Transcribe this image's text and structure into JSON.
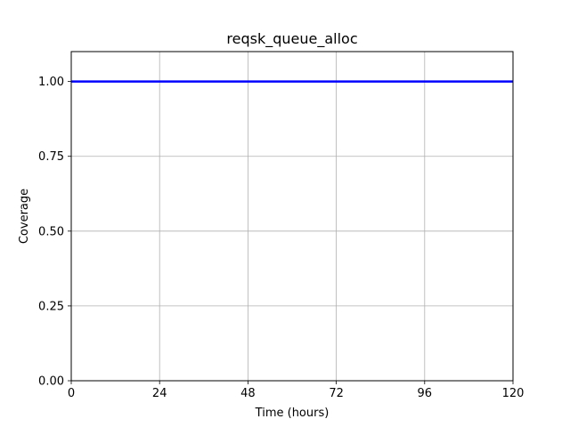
{
  "chart_data": {
    "type": "line",
    "title": "reqsk_queue_alloc",
    "xlabel": "Time (hours)",
    "ylabel": "Coverage",
    "xlim": [
      0,
      120
    ],
    "ylim": [
      0,
      1.1
    ],
    "xticks": [
      0,
      24,
      48,
      72,
      96,
      120
    ],
    "xtick_labels": [
      "0",
      "24",
      "48",
      "72",
      "96",
      "120"
    ],
    "yticks": [
      0,
      0.25,
      0.5,
      0.75,
      1.0
    ],
    "ytick_labels": [
      "0.00",
      "0.25",
      "0.50",
      "0.75",
      "1.00"
    ],
    "grid": true,
    "legend": "none",
    "series": [
      {
        "color": "#0000ff",
        "x": [
          0,
          120
        ],
        "y": [
          1.0,
          1.0
        ]
      }
    ]
  }
}
